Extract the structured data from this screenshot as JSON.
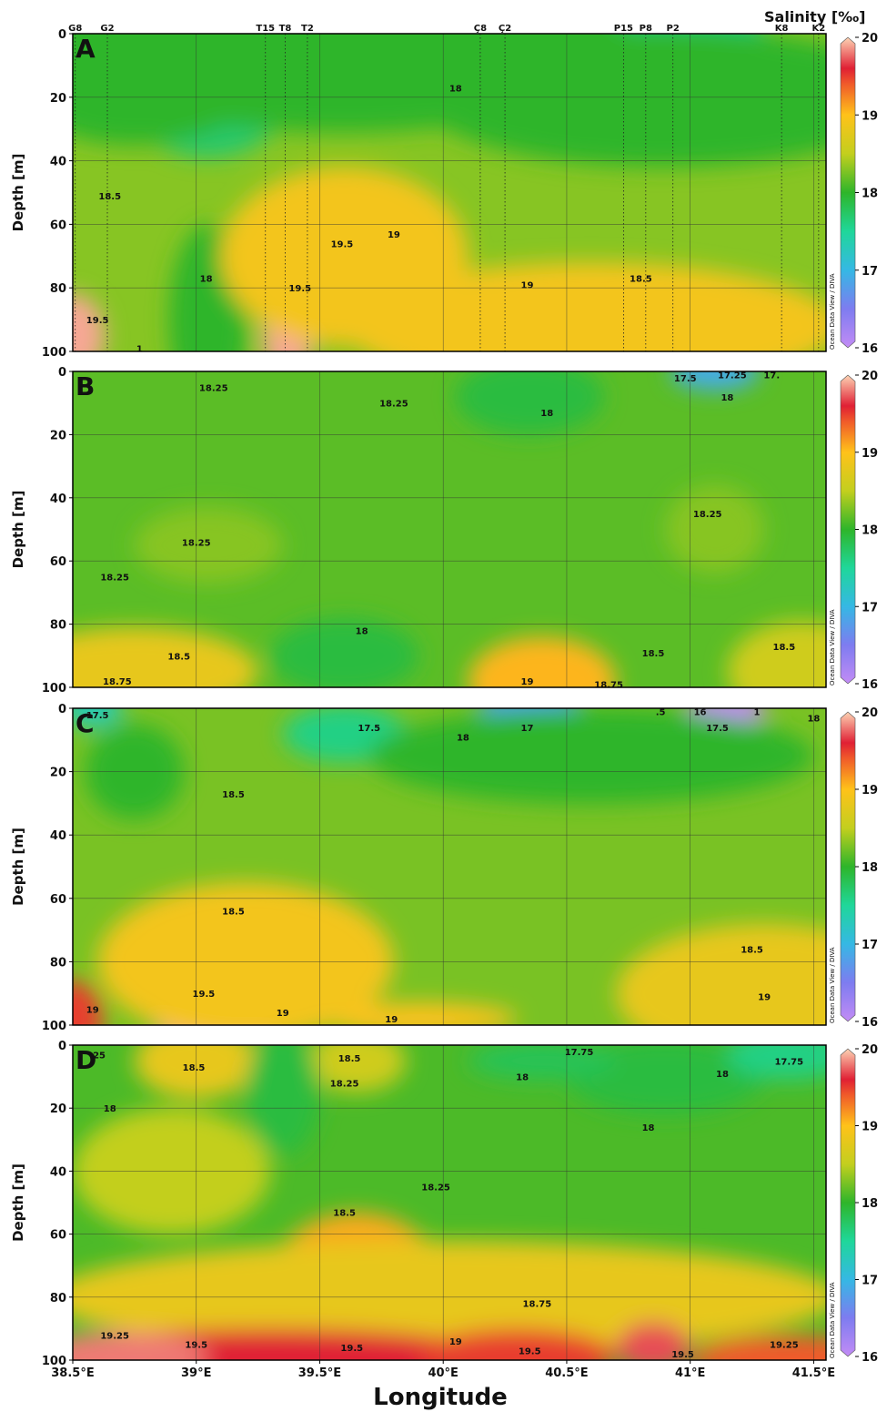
{
  "colorbar": {
    "title": "Salinity [‰]",
    "ticks": [
      16,
      17,
      18,
      19,
      20
    ],
    "range": [
      16,
      20
    ],
    "credit": "Ocean Data View / DIVA",
    "stops": [
      {
        "v": 16.0,
        "c": "#c38cf5"
      },
      {
        "v": 16.5,
        "c": "#7e7cf0"
      },
      {
        "v": 17.0,
        "c": "#35b8e4"
      },
      {
        "v": 17.5,
        "c": "#1fd79a"
      },
      {
        "v": 18.0,
        "c": "#2eb52a"
      },
      {
        "v": 18.5,
        "c": "#c3cf1e"
      },
      {
        "v": 19.0,
        "c": "#ffc21a"
      },
      {
        "v": 19.4,
        "c": "#f05a2a"
      },
      {
        "v": 19.6,
        "c": "#e02034"
      },
      {
        "v": 20.0,
        "c": "#fdd4b4"
      }
    ]
  },
  "chart_data": [
    {
      "type": "heatmap",
      "panel": "A",
      "xlabel": "",
      "ylabel": "Depth [m]",
      "xlim": [
        38.5,
        41.55
      ],
      "ylim": [
        100,
        0
      ],
      "stations": [
        {
          "name": "G8",
          "lon": 38.51
        },
        {
          "name": "G2",
          "lon": 38.64
        },
        {
          "name": "T15",
          "lon": 39.28
        },
        {
          "name": "T8",
          "lon": 39.36
        },
        {
          "name": "T2",
          "lon": 39.45
        },
        {
          "name": "Ç8",
          "lon": 40.15
        },
        {
          "name": "Ç2",
          "lon": 40.25
        },
        {
          "name": "P15",
          "lon": 40.73
        },
        {
          "name": "P8",
          "lon": 40.82
        },
        {
          "name": "P2",
          "lon": 40.93
        },
        {
          "name": "K8",
          "lon": 41.37
        },
        {
          "name": "K2",
          "lon": 41.52
        }
      ],
      "background": 18.3,
      "features": [
        {
          "lon": 39.05,
          "depth": 25,
          "value": 17.7,
          "rx": 0.28,
          "ry": 14
        },
        {
          "lon": 40.95,
          "depth": 2,
          "value": 17.6,
          "rx": 0.35,
          "ry": 16
        },
        {
          "lon": 38.75,
          "depth": 5,
          "value": 18.0,
          "rx": 0.6,
          "ry": 30
        },
        {
          "lon": 39.6,
          "depth": 5,
          "value": 18.0,
          "rx": 1.2,
          "ry": 26
        },
        {
          "lon": 40.9,
          "depth": 20,
          "value": 18.0,
          "rx": 1.0,
          "ry": 22
        },
        {
          "lon": 39.05,
          "depth": 90,
          "value": 18.0,
          "rx": 0.16,
          "ry": 30
        },
        {
          "lon": 38.5,
          "depth": 95,
          "value": 19.9,
          "rx": 0.13,
          "ry": 13
        },
        {
          "lon": 39.58,
          "depth": 68,
          "value": 19.6,
          "rx": 0.25,
          "ry": 16
        },
        {
          "lon": 39.37,
          "depth": 95,
          "value": 19.9,
          "rx": 0.1,
          "ry": 14
        },
        {
          "lon": 40.3,
          "depth": 99,
          "value": 19.5,
          "rx": 0.5,
          "ry": 14
        },
        {
          "lon": 39.6,
          "depth": 70,
          "value": 18.9,
          "rx": 0.5,
          "ry": 28
        },
        {
          "lon": 40.6,
          "depth": 92,
          "value": 18.9,
          "rx": 1.0,
          "ry": 20
        }
      ],
      "contour_labels": [
        {
          "text": "18",
          "lon": 40.05,
          "depth": 17
        },
        {
          "text": "18.5",
          "lon": 38.65,
          "depth": 51
        },
        {
          "text": "19.5",
          "lon": 39.59,
          "depth": 66
        },
        {
          "text": "19",
          "lon": 39.8,
          "depth": 63
        },
        {
          "text": "18",
          "lon": 39.04,
          "depth": 77
        },
        {
          "text": "19.5",
          "lon": 39.42,
          "depth": 80
        },
        {
          "text": "19",
          "lon": 40.34,
          "depth": 79
        },
        {
          "text": "18.5",
          "lon": 40.8,
          "depth": 77
        },
        {
          "text": "19.5",
          "lon": 38.6,
          "depth": 90
        },
        {
          "text": "1",
          "lon": 38.77,
          "depth": 99
        }
      ]
    },
    {
      "type": "heatmap",
      "panel": "B",
      "xlabel": "",
      "ylabel": "Depth [m]",
      "xlim": [
        38.5,
        41.55
      ],
      "ylim": [
        100,
        0
      ],
      "background": 18.15,
      "features": [
        {
          "lon": 41.1,
          "depth": 0,
          "value": 16.9,
          "rx": 0.18,
          "ry": 6
        },
        {
          "lon": 40.35,
          "depth": 8,
          "value": 17.9,
          "rx": 0.3,
          "ry": 12
        },
        {
          "lon": 39.6,
          "depth": 90,
          "value": 17.9,
          "rx": 0.3,
          "ry": 12
        },
        {
          "lon": 38.75,
          "depth": 95,
          "value": 18.8,
          "rx": 0.5,
          "ry": 14
        },
        {
          "lon": 40.4,
          "depth": 98,
          "value": 19.05,
          "rx": 0.3,
          "ry": 14
        },
        {
          "lon": 41.45,
          "depth": 95,
          "value": 18.6,
          "rx": 0.3,
          "ry": 16
        },
        {
          "lon": 39.05,
          "depth": 55,
          "value": 18.3,
          "rx": 0.3,
          "ry": 12
        },
        {
          "lon": 41.1,
          "depth": 50,
          "value": 18.3,
          "rx": 0.2,
          "ry": 14
        }
      ],
      "contour_labels": [
        {
          "text": "17.5",
          "lon": 40.98,
          "depth": 2
        },
        {
          "text": "17.25",
          "lon": 41.17,
          "depth": 1
        },
        {
          "text": "17.",
          "lon": 41.33,
          "depth": 1
        },
        {
          "text": "18.25",
          "lon": 39.07,
          "depth": 5
        },
        {
          "text": "18.25",
          "lon": 39.8,
          "depth": 10
        },
        {
          "text": "18",
          "lon": 40.42,
          "depth": 13
        },
        {
          "text": "18",
          "lon": 41.15,
          "depth": 8
        },
        {
          "text": "18.25",
          "lon": 41.07,
          "depth": 45
        },
        {
          "text": "18.25",
          "lon": 39.0,
          "depth": 54
        },
        {
          "text": "18.25",
          "lon": 38.67,
          "depth": 65
        },
        {
          "text": "18",
          "lon": 39.67,
          "depth": 82
        },
        {
          "text": "18.5",
          "lon": 38.93,
          "depth": 90
        },
        {
          "text": "18.5",
          "lon": 40.85,
          "depth": 89
        },
        {
          "text": "18.5",
          "lon": 41.38,
          "depth": 87
        },
        {
          "text": "18.75",
          "lon": 38.68,
          "depth": 98
        },
        {
          "text": "19",
          "lon": 40.34,
          "depth": 98
        },
        {
          "text": "18.75",
          "lon": 40.67,
          "depth": 99
        }
      ]
    },
    {
      "type": "heatmap",
      "panel": "C",
      "xlabel": "",
      "ylabel": "Depth [m]",
      "xlim": [
        38.5,
        41.55
      ],
      "ylim": [
        100,
        0
      ],
      "background": 18.25,
      "features": [
        {
          "lon": 38.58,
          "depth": 0,
          "value": 17.3,
          "rx": 0.12,
          "ry": 6
        },
        {
          "lon": 39.6,
          "depth": 8,
          "value": 17.6,
          "rx": 0.25,
          "ry": 9
        },
        {
          "lon": 40.35,
          "depth": 0,
          "value": 16.8,
          "rx": 0.2,
          "ry": 7
        },
        {
          "lon": 41.15,
          "depth": 0,
          "value": 16.0,
          "rx": 0.16,
          "ry": 5
        },
        {
          "lon": 40.6,
          "depth": 15,
          "value": 18.0,
          "rx": 0.9,
          "ry": 15
        },
        {
          "lon": 38.75,
          "depth": 20,
          "value": 18.0,
          "rx": 0.2,
          "ry": 15
        },
        {
          "lon": 39.1,
          "depth": 97,
          "value": 19.9,
          "rx": 0.28,
          "ry": 13
        },
        {
          "lon": 38.5,
          "depth": 98,
          "value": 19.5,
          "rx": 0.12,
          "ry": 12
        },
        {
          "lon": 41.55,
          "depth": 98,
          "value": 19.5,
          "rx": 0.35,
          "ry": 14
        },
        {
          "lon": 39.9,
          "depth": 98,
          "value": 19.0,
          "rx": 0.4,
          "ry": 5
        },
        {
          "lon": 39.2,
          "depth": 80,
          "value": 18.9,
          "rx": 0.6,
          "ry": 25
        },
        {
          "lon": 41.3,
          "depth": 90,
          "value": 18.8,
          "rx": 0.6,
          "ry": 22
        }
      ],
      "contour_labels": [
        {
          "text": "17.5",
          "lon": 38.6,
          "depth": 2
        },
        {
          "text": "17.5",
          "lon": 39.7,
          "depth": 6
        },
        {
          "text": "18",
          "lon": 40.08,
          "depth": 9
        },
        {
          "text": "17",
          "lon": 40.34,
          "depth": 6
        },
        {
          "text": ".5",
          "lon": 40.88,
          "depth": 1
        },
        {
          "text": "16",
          "lon": 41.04,
          "depth": 1
        },
        {
          "text": "17.5",
          "lon": 41.11,
          "depth": 6
        },
        {
          "text": "1",
          "lon": 41.27,
          "depth": 1
        },
        {
          "text": "18",
          "lon": 41.5,
          "depth": 3
        },
        {
          "text": "18.5",
          "lon": 39.15,
          "depth": 27
        },
        {
          "text": "18.5",
          "lon": 39.15,
          "depth": 64
        },
        {
          "text": "18.5",
          "lon": 41.25,
          "depth": 76
        },
        {
          "text": "19.5",
          "lon": 39.03,
          "depth": 90
        },
        {
          "text": "19",
          "lon": 38.58,
          "depth": 95
        },
        {
          "text": "19",
          "lon": 39.35,
          "depth": 96
        },
        {
          "text": "19",
          "lon": 39.79,
          "depth": 98
        },
        {
          "text": "19",
          "lon": 41.3,
          "depth": 91
        }
      ]
    },
    {
      "type": "heatmap",
      "panel": "D",
      "xlabel": "Longitude",
      "ylabel": "Depth [m]",
      "xlim": [
        38.5,
        41.55
      ],
      "ylim": [
        100,
        0
      ],
      "xticks": [
        {
          "v": 38.5,
          "label": "38.5°E"
        },
        {
          "v": 39.0,
          "label": "39°E"
        },
        {
          "v": 39.5,
          "label": "39.5°E"
        },
        {
          "v": 40.0,
          "label": "40°E"
        },
        {
          "v": 40.5,
          "label": "40.5°E"
        },
        {
          "v": 41.0,
          "label": "41°E"
        },
        {
          "v": 41.5,
          "label": "41.5°E"
        }
      ],
      "background": 18.1,
      "features": [
        {
          "lon": 39.0,
          "depth": 5,
          "value": 18.8,
          "rx": 0.25,
          "ry": 12
        },
        {
          "lon": 39.65,
          "depth": 5,
          "value": 18.6,
          "rx": 0.2,
          "ry": 10
        },
        {
          "lon": 39.35,
          "depth": 15,
          "value": 17.9,
          "rx": 0.15,
          "ry": 20
        },
        {
          "lon": 40.9,
          "depth": 10,
          "value": 17.9,
          "rx": 0.4,
          "ry": 12
        },
        {
          "lon": 41.4,
          "depth": 3,
          "value": 17.6,
          "rx": 0.25,
          "ry": 8
        },
        {
          "lon": 40.4,
          "depth": 5,
          "value": 17.8,
          "rx": 0.3,
          "ry": 6
        },
        {
          "lon": 38.9,
          "depth": 40,
          "value": 18.5,
          "rx": 0.4,
          "ry": 20
        },
        {
          "lon": 39.65,
          "depth": 75,
          "value": 19.1,
          "rx": 0.35,
          "ry": 22
        },
        {
          "lon": 40.0,
          "depth": 80,
          "value": 18.8,
          "rx": 1.6,
          "ry": 18
        },
        {
          "lon": 39.3,
          "depth": 100,
          "value": 19.6,
          "rx": 1.0,
          "ry": 10
        },
        {
          "lon": 38.7,
          "depth": 99,
          "value": 19.8,
          "rx": 0.35,
          "ry": 8
        },
        {
          "lon": 40.3,
          "depth": 99,
          "value": 19.5,
          "rx": 0.4,
          "ry": 9
        },
        {
          "lon": 40.85,
          "depth": 96,
          "value": 19.7,
          "rx": 0.15,
          "ry": 8
        },
        {
          "lon": 41.4,
          "depth": 100,
          "value": 19.4,
          "rx": 0.4,
          "ry": 8
        }
      ],
      "contour_labels": [
        {
          "text": ".25",
          "lon": 38.6,
          "depth": 3
        },
        {
          "text": "18.5",
          "lon": 38.99,
          "depth": 7
        },
        {
          "text": "18.5",
          "lon": 39.62,
          "depth": 4
        },
        {
          "text": "18.25",
          "lon": 39.6,
          "depth": 12
        },
        {
          "text": "18",
          "lon": 40.32,
          "depth": 10
        },
        {
          "text": "17.75",
          "lon": 40.55,
          "depth": 2
        },
        {
          "text": "18",
          "lon": 41.13,
          "depth": 9
        },
        {
          "text": "17.75",
          "lon": 41.4,
          "depth": 5
        },
        {
          "text": "18",
          "lon": 38.65,
          "depth": 20
        },
        {
          "text": "18",
          "lon": 40.83,
          "depth": 26
        },
        {
          "text": "18.25",
          "lon": 39.97,
          "depth": 45
        },
        {
          "text": "18.5",
          "lon": 39.6,
          "depth": 53
        },
        {
          "text": "18.75",
          "lon": 40.38,
          "depth": 82
        },
        {
          "text": "19.25",
          "lon": 38.67,
          "depth": 92
        },
        {
          "text": "19.5",
          "lon": 39.0,
          "depth": 95
        },
        {
          "text": "19",
          "lon": 40.05,
          "depth": 94
        },
        {
          "text": "19.5",
          "lon": 39.63,
          "depth": 96
        },
        {
          "text": "19.5",
          "lon": 40.35,
          "depth": 97
        },
        {
          "text": "19.5",
          "lon": 40.97,
          "depth": 98
        },
        {
          "text": "19.25",
          "lon": 41.38,
          "depth": 95
        }
      ]
    }
  ],
  "axes": {
    "ylabel": "Depth [m]",
    "yticks": [
      0,
      20,
      40,
      60,
      80,
      100
    ]
  }
}
